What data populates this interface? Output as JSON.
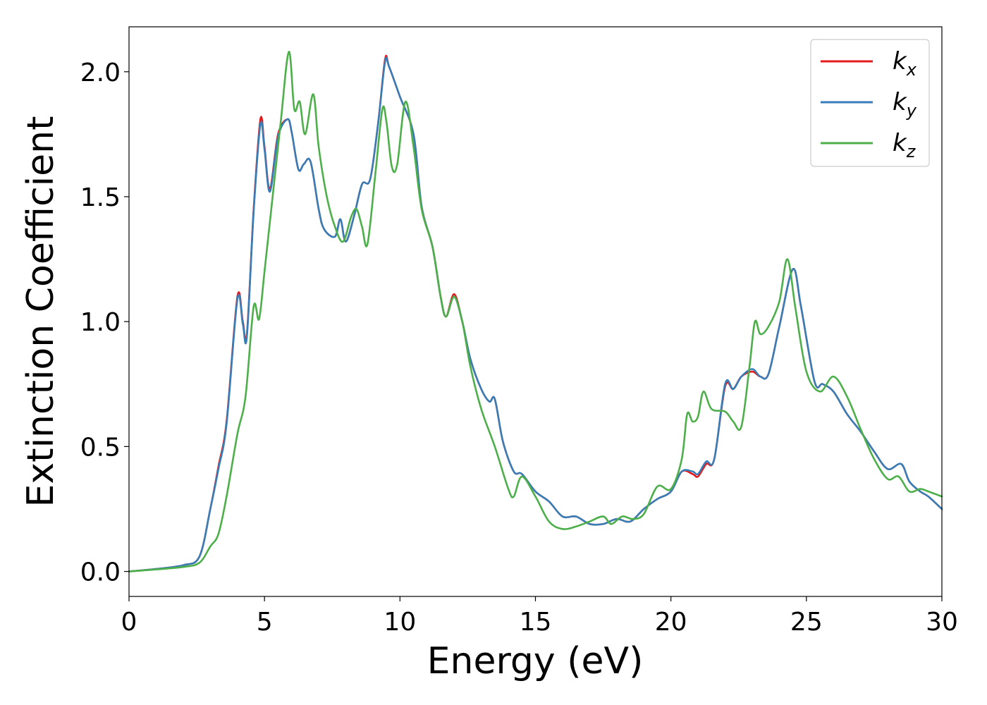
{
  "chart_data": {
    "type": "line",
    "xlabel": "Energy (eV)",
    "ylabel": "Extinction Coefficient",
    "xlim": [
      0,
      30
    ],
    "ylim": [
      -0.1,
      2.18
    ],
    "x_ticks": [
      "0",
      "5",
      "10",
      "15",
      "20",
      "25",
      "30"
    ],
    "y_ticks": [
      "0.0",
      "0.5",
      "1.0",
      "1.5",
      "2.0"
    ],
    "grid": false,
    "legend_position": "top-right",
    "series": [
      {
        "name": "kx",
        "label_main": "k",
        "label_sub": "x",
        "color": "#e41a1c",
        "points": [
          [
            0,
            0
          ],
          [
            1,
            0.01
          ],
          [
            2,
            0.025
          ],
          [
            2.6,
            0.06
          ],
          [
            3.0,
            0.25
          ],
          [
            3.3,
            0.42
          ],
          [
            3.6,
            0.6
          ],
          [
            4.0,
            1.1
          ],
          [
            4.2,
            1.0
          ],
          [
            4.35,
            0.95
          ],
          [
            4.6,
            1.45
          ],
          [
            4.85,
            1.81
          ],
          [
            5.0,
            1.7
          ],
          [
            5.2,
            1.53
          ],
          [
            5.5,
            1.75
          ],
          [
            5.85,
            1.81
          ],
          [
            6.0,
            1.76
          ],
          [
            6.25,
            1.61
          ],
          [
            6.45,
            1.63
          ],
          [
            6.7,
            1.64
          ],
          [
            7.0,
            1.45
          ],
          [
            7.2,
            1.37
          ],
          [
            7.6,
            1.34
          ],
          [
            7.8,
            1.41
          ],
          [
            8.0,
            1.32
          ],
          [
            8.3,
            1.42
          ],
          [
            8.6,
            1.55
          ],
          [
            8.9,
            1.57
          ],
          [
            9.2,
            1.8
          ],
          [
            9.45,
            2.05
          ],
          [
            9.6,
            2.02
          ],
          [
            10.0,
            1.9
          ],
          [
            10.5,
            1.75
          ],
          [
            10.8,
            1.46
          ],
          [
            11.2,
            1.3
          ],
          [
            11.5,
            1.1
          ],
          [
            11.7,
            1.02
          ],
          [
            12.0,
            1.11
          ],
          [
            12.3,
            1.0
          ],
          [
            12.6,
            0.85
          ],
          [
            13.0,
            0.73
          ],
          [
            13.3,
            0.68
          ],
          [
            13.5,
            0.69
          ],
          [
            13.8,
            0.52
          ],
          [
            14.2,
            0.4
          ],
          [
            14.5,
            0.39
          ],
          [
            15.0,
            0.32
          ],
          [
            15.5,
            0.28
          ],
          [
            16.0,
            0.22
          ],
          [
            16.5,
            0.22
          ],
          [
            17.0,
            0.19
          ],
          [
            17.5,
            0.19
          ],
          [
            18.0,
            0.21
          ],
          [
            18.5,
            0.2
          ],
          [
            19.0,
            0.25
          ],
          [
            19.5,
            0.29
          ],
          [
            20.0,
            0.32
          ],
          [
            20.4,
            0.4
          ],
          [
            20.8,
            0.39
          ],
          [
            21.0,
            0.38
          ],
          [
            21.3,
            0.43
          ],
          [
            21.6,
            0.45
          ],
          [
            22.0,
            0.74
          ],
          [
            22.3,
            0.73
          ],
          [
            22.6,
            0.78
          ],
          [
            23.0,
            0.8
          ],
          [
            23.3,
            0.78
          ],
          [
            23.6,
            0.79
          ],
          [
            24.0,
            0.98
          ],
          [
            24.5,
            1.21
          ],
          [
            24.8,
            1.06
          ],
          [
            25.3,
            0.76
          ],
          [
            25.6,
            0.75
          ],
          [
            26.0,
            0.72
          ],
          [
            26.5,
            0.63
          ],
          [
            27.0,
            0.56
          ],
          [
            27.5,
            0.48
          ],
          [
            28.0,
            0.41
          ],
          [
            28.5,
            0.43
          ],
          [
            28.8,
            0.36
          ],
          [
            29.2,
            0.32
          ],
          [
            29.5,
            0.3
          ],
          [
            30,
            0.25
          ]
        ]
      },
      {
        "name": "ky",
        "label_main": "k",
        "label_sub": "y",
        "color": "#377eb8",
        "points": [
          [
            0,
            0
          ],
          [
            1,
            0.01
          ],
          [
            2,
            0.025
          ],
          [
            2.6,
            0.06
          ],
          [
            3.0,
            0.25
          ],
          [
            3.3,
            0.41
          ],
          [
            3.6,
            0.59
          ],
          [
            4.0,
            1.09
          ],
          [
            4.2,
            0.99
          ],
          [
            4.35,
            0.94
          ],
          [
            4.6,
            1.44
          ],
          [
            4.85,
            1.79
          ],
          [
            5.0,
            1.69
          ],
          [
            5.2,
            1.52
          ],
          [
            5.5,
            1.74
          ],
          [
            5.85,
            1.81
          ],
          [
            6.0,
            1.76
          ],
          [
            6.25,
            1.61
          ],
          [
            6.45,
            1.63
          ],
          [
            6.7,
            1.64
          ],
          [
            7.0,
            1.45
          ],
          [
            7.2,
            1.37
          ],
          [
            7.6,
            1.34
          ],
          [
            7.8,
            1.41
          ],
          [
            8.0,
            1.32
          ],
          [
            8.3,
            1.42
          ],
          [
            8.6,
            1.55
          ],
          [
            8.9,
            1.57
          ],
          [
            9.2,
            1.8
          ],
          [
            9.45,
            2.04
          ],
          [
            9.6,
            2.02
          ],
          [
            10.0,
            1.9
          ],
          [
            10.5,
            1.75
          ],
          [
            10.8,
            1.46
          ],
          [
            11.2,
            1.3
          ],
          [
            11.5,
            1.1
          ],
          [
            11.7,
            1.02
          ],
          [
            12.0,
            1.1
          ],
          [
            12.3,
            1.0
          ],
          [
            12.6,
            0.85
          ],
          [
            13.0,
            0.73
          ],
          [
            13.3,
            0.68
          ],
          [
            13.5,
            0.69
          ],
          [
            13.8,
            0.52
          ],
          [
            14.2,
            0.4
          ],
          [
            14.5,
            0.39
          ],
          [
            15.0,
            0.32
          ],
          [
            15.5,
            0.28
          ],
          [
            16.0,
            0.22
          ],
          [
            16.5,
            0.22
          ],
          [
            17.0,
            0.19
          ],
          [
            17.5,
            0.19
          ],
          [
            18.0,
            0.21
          ],
          [
            18.5,
            0.2
          ],
          [
            19.0,
            0.25
          ],
          [
            19.5,
            0.29
          ],
          [
            20.0,
            0.32
          ],
          [
            20.4,
            0.4
          ],
          [
            20.8,
            0.4
          ],
          [
            21.0,
            0.39
          ],
          [
            21.3,
            0.44
          ],
          [
            21.6,
            0.45
          ],
          [
            22.0,
            0.75
          ],
          [
            22.3,
            0.73
          ],
          [
            22.6,
            0.78
          ],
          [
            23.0,
            0.81
          ],
          [
            23.3,
            0.78
          ],
          [
            23.6,
            0.79
          ],
          [
            24.0,
            0.98
          ],
          [
            24.5,
            1.21
          ],
          [
            24.8,
            1.06
          ],
          [
            25.3,
            0.76
          ],
          [
            25.6,
            0.75
          ],
          [
            26.0,
            0.72
          ],
          [
            26.5,
            0.63
          ],
          [
            27.0,
            0.56
          ],
          [
            27.5,
            0.48
          ],
          [
            28.0,
            0.41
          ],
          [
            28.5,
            0.43
          ],
          [
            28.8,
            0.36
          ],
          [
            29.2,
            0.32
          ],
          [
            29.5,
            0.3
          ],
          [
            30,
            0.25
          ]
        ]
      },
      {
        "name": "kz",
        "label_main": "k",
        "label_sub": "z",
        "color": "#4daf4a",
        "points": [
          [
            0,
            0
          ],
          [
            1,
            0.008
          ],
          [
            2,
            0.018
          ],
          [
            2.6,
            0.035
          ],
          [
            3.0,
            0.1
          ],
          [
            3.3,
            0.15
          ],
          [
            3.6,
            0.3
          ],
          [
            4.0,
            0.55
          ],
          [
            4.3,
            0.7
          ],
          [
            4.6,
            1.06
          ],
          [
            4.8,
            1.01
          ],
          [
            5.0,
            1.2
          ],
          [
            5.3,
            1.5
          ],
          [
            5.6,
            1.8
          ],
          [
            5.9,
            2.08
          ],
          [
            6.1,
            1.85
          ],
          [
            6.3,
            1.88
          ],
          [
            6.5,
            1.75
          ],
          [
            6.8,
            1.91
          ],
          [
            7.0,
            1.7
          ],
          [
            7.3,
            1.5
          ],
          [
            7.6,
            1.38
          ],
          [
            7.9,
            1.32
          ],
          [
            8.2,
            1.42
          ],
          [
            8.4,
            1.45
          ],
          [
            8.6,
            1.38
          ],
          [
            8.8,
            1.31
          ],
          [
            9.1,
            1.6
          ],
          [
            9.35,
            1.85
          ],
          [
            9.5,
            1.8
          ],
          [
            9.7,
            1.62
          ],
          [
            9.9,
            1.63
          ],
          [
            10.2,
            1.88
          ],
          [
            10.5,
            1.7
          ],
          [
            10.8,
            1.45
          ],
          [
            11.2,
            1.3
          ],
          [
            11.5,
            1.1
          ],
          [
            11.7,
            1.02
          ],
          [
            12.0,
            1.1
          ],
          [
            12.3,
            1.0
          ],
          [
            12.6,
            0.82
          ],
          [
            13.0,
            0.65
          ],
          [
            13.5,
            0.5
          ],
          [
            14.0,
            0.33
          ],
          [
            14.2,
            0.3
          ],
          [
            14.5,
            0.38
          ],
          [
            15.0,
            0.3
          ],
          [
            15.5,
            0.2
          ],
          [
            16.0,
            0.17
          ],
          [
            16.5,
            0.18
          ],
          [
            17.0,
            0.2
          ],
          [
            17.5,
            0.22
          ],
          [
            17.8,
            0.19
          ],
          [
            18.2,
            0.22
          ],
          [
            18.6,
            0.21
          ],
          [
            19.0,
            0.23
          ],
          [
            19.5,
            0.34
          ],
          [
            20.0,
            0.33
          ],
          [
            20.4,
            0.45
          ],
          [
            20.6,
            0.63
          ],
          [
            20.8,
            0.6
          ],
          [
            21.0,
            0.62
          ],
          [
            21.2,
            0.72
          ],
          [
            21.5,
            0.65
          ],
          [
            22.0,
            0.64
          ],
          [
            22.3,
            0.6
          ],
          [
            22.6,
            0.58
          ],
          [
            22.9,
            0.82
          ],
          [
            23.1,
            1.0
          ],
          [
            23.3,
            0.95
          ],
          [
            23.6,
            0.98
          ],
          [
            24.0,
            1.08
          ],
          [
            24.3,
            1.25
          ],
          [
            24.6,
            1.05
          ],
          [
            25.0,
            0.8
          ],
          [
            25.5,
            0.72
          ],
          [
            26.0,
            0.78
          ],
          [
            26.5,
            0.7
          ],
          [
            27.0,
            0.57
          ],
          [
            27.5,
            0.45
          ],
          [
            28.0,
            0.37
          ],
          [
            28.4,
            0.38
          ],
          [
            28.8,
            0.32
          ],
          [
            29.2,
            0.33
          ],
          [
            29.5,
            0.32
          ],
          [
            30,
            0.3
          ]
        ]
      }
    ]
  }
}
